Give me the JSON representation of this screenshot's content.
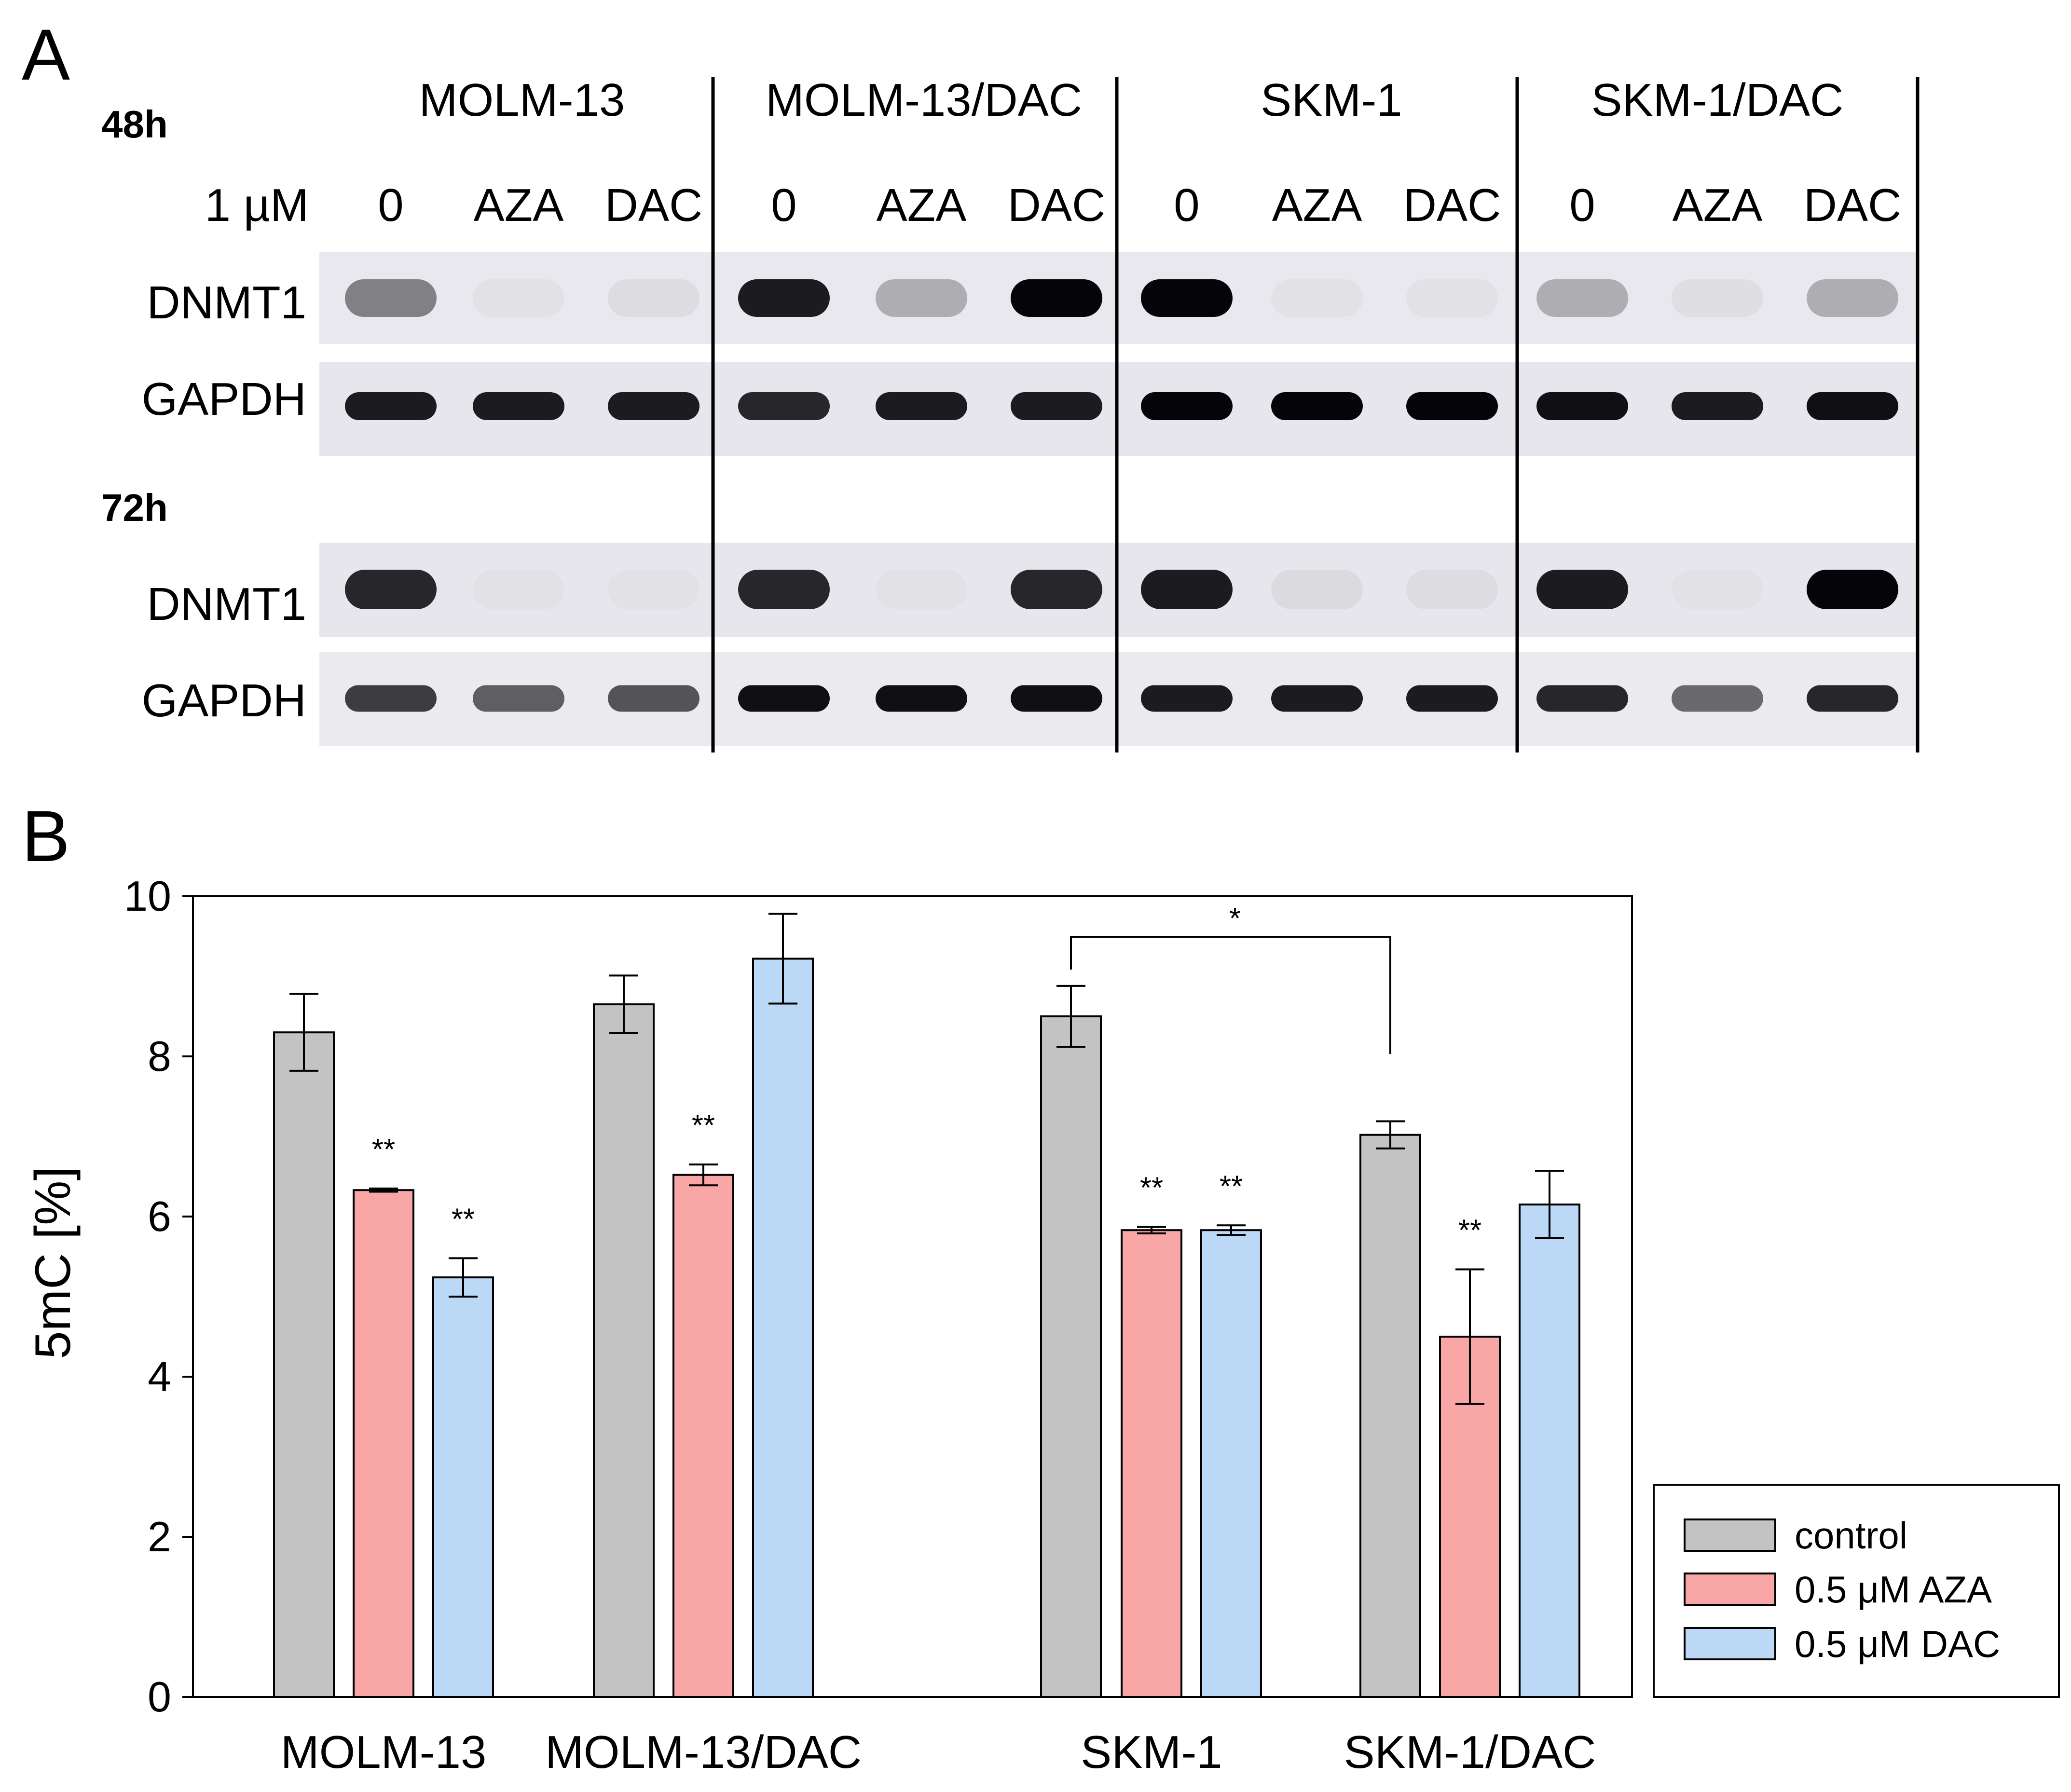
{
  "panel_a": {
    "letter": "A",
    "time_48": "48h",
    "time_72": "72h",
    "dose_label": "1 µM",
    "cell_lines": [
      "MOLM-13",
      "MOLM-13/DAC",
      "SKM-1",
      "SKM-1/DAC"
    ],
    "treatments": [
      "0",
      "AZA",
      "DAC"
    ],
    "protein_dnmt1": "DNMT1",
    "protein_gapdh": "GAPDH",
    "band_intensity": {
      "h48_dnmt1": [
        0.45,
        0.02,
        0.04,
        0.9,
        0.25,
        1.0,
        1.0,
        0.02,
        0.02,
        0.25,
        0.03,
        0.25
      ],
      "h48_gapdh": [
        0.9,
        0.9,
        0.9,
        0.85,
        0.9,
        0.9,
        1.0,
        1.0,
        1.0,
        0.95,
        0.9,
        0.95
      ],
      "h72_dnmt1": [
        0.85,
        0.02,
        0.02,
        0.85,
        0.02,
        0.85,
        0.9,
        0.05,
        0.04,
        0.9,
        0.02,
        1.0
      ],
      "h72_gapdh": [
        0.75,
        0.6,
        0.65,
        0.95,
        0.95,
        0.95,
        0.9,
        0.9,
        0.9,
        0.85,
        0.55,
        0.85
      ]
    }
  },
  "chart_data": {
    "type": "bar",
    "panel_letter": "B",
    "categories": [
      "MOLM-13",
      "MOLM-13/DAC",
      "SKM-1",
      "SKM-1/DAC"
    ],
    "ylabel": "5mC [%]",
    "ylim": [
      0,
      10
    ],
    "yticks": [
      0,
      2,
      4,
      6,
      8,
      10
    ],
    "series": [
      {
        "name": "control",
        "color": "#c3c3c3",
        "values": [
          8.3,
          8.65,
          8.5,
          7.02
        ],
        "errors": [
          0.48,
          0.36,
          0.38,
          0.17
        ]
      },
      {
        "name": "0.5 μM AZA",
        "color": "#f9a6a6",
        "values": [
          6.33,
          6.52,
          5.83,
          4.5
        ],
        "errors": [
          0.02,
          0.13,
          0.04,
          0.84
        ]
      },
      {
        "name": "0.5 μM DAC",
        "color": "#bcd8f7",
        "values": [
          5.24,
          9.22,
          5.83,
          6.15
        ],
        "errors": [
          0.24,
          0.56,
          0.06,
          0.42
        ]
      }
    ],
    "significance": [
      [
        "",
        "**",
        "**"
      ],
      [
        "",
        "**",
        ""
      ],
      [
        "",
        "**",
        "**"
      ],
      [
        "",
        "**",
        ""
      ]
    ],
    "bracket": {
      "from": "SKM-1",
      "to": "SKM-1/DAC",
      "label": "*"
    },
    "grid": false,
    "legend_position": "bottom-right"
  }
}
